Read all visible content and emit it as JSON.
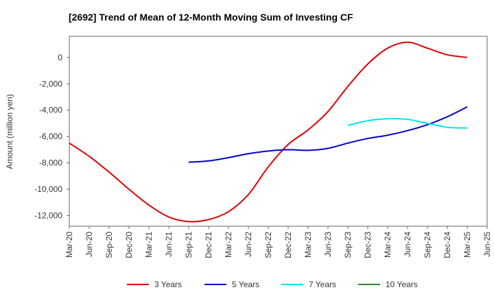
{
  "chart_data": {
    "type": "line",
    "title": "[2692]  Trend of Mean of 12-Month Moving Sum of Investing CF",
    "xlabel": "",
    "ylabel": "Amount (million yen)",
    "ylim": [
      -12800,
      1600
    ],
    "y_ticks": [
      0,
      -2000,
      -4000,
      -6000,
      -8000,
      -10000,
      -12000
    ],
    "y_tick_labels": [
      "0",
      "-2,000",
      "-4,000",
      "-6,000",
      "-8,000",
      "-10,000",
      "-12,000"
    ],
    "x_tick_labels": [
      "Mar-20",
      "Jun-20",
      "Sep-20",
      "Dec-20",
      "Mar-21",
      "Jun-21",
      "Sep-21",
      "Dec-21",
      "Mar-22",
      "Jun-22",
      "Sep-22",
      "Dec-22",
      "Mar-23",
      "Jun-23",
      "Sep-23",
      "Dec-23",
      "Mar-24",
      "Jun-24",
      "Sep-24",
      "Dec-24",
      "Mar-25",
      "Jun-25"
    ],
    "grid": true,
    "legend_position": "bottom",
    "series": [
      {
        "name": "3 Years",
        "color": "#e00000",
        "points": [
          [
            "Mar-20",
            -6500
          ],
          [
            "Jun-20",
            -7500
          ],
          [
            "Sep-20",
            -8700
          ],
          [
            "Dec-20",
            -10000
          ],
          [
            "Mar-21",
            -11200
          ],
          [
            "Jun-21",
            -12100
          ],
          [
            "Sep-21",
            -12450
          ],
          [
            "Dec-21",
            -12300
          ],
          [
            "Mar-22",
            -11700
          ],
          [
            "Jun-22",
            -10400
          ],
          [
            "Sep-22",
            -8300
          ],
          [
            "Dec-22",
            -6600
          ],
          [
            "Mar-23",
            -5500
          ],
          [
            "Jun-23",
            -4100
          ],
          [
            "Sep-23",
            -2200
          ],
          [
            "Dec-23",
            -500
          ],
          [
            "Mar-24",
            700
          ],
          [
            "Jun-24",
            1150
          ],
          [
            "Sep-24",
            700
          ],
          [
            "Dec-24",
            200
          ],
          [
            "Mar-25",
            0
          ]
        ]
      },
      {
        "name": "5 Years",
        "color": "#0000cc",
        "points": [
          [
            "Sep-21",
            -7950
          ],
          [
            "Dec-21",
            -7850
          ],
          [
            "Mar-22",
            -7600
          ],
          [
            "Jun-22",
            -7300
          ],
          [
            "Sep-22",
            -7100
          ],
          [
            "Dec-22",
            -7000
          ],
          [
            "Mar-23",
            -7050
          ],
          [
            "Jun-23",
            -6900
          ],
          [
            "Sep-23",
            -6500
          ],
          [
            "Dec-23",
            -6150
          ],
          [
            "Mar-24",
            -5900
          ],
          [
            "Jun-24",
            -5550
          ],
          [
            "Sep-24",
            -5100
          ],
          [
            "Dec-24",
            -4500
          ],
          [
            "Mar-25",
            -3750
          ]
        ]
      },
      {
        "name": "7 Years",
        "color": "#00e5ee",
        "points": [
          [
            "Sep-23",
            -5150
          ],
          [
            "Dec-23",
            -4800
          ],
          [
            "Mar-24",
            -4650
          ],
          [
            "Jun-24",
            -4700
          ],
          [
            "Sep-24",
            -5000
          ],
          [
            "Dec-24",
            -5300
          ],
          [
            "Mar-25",
            -5350
          ]
        ]
      },
      {
        "name": "10 Years",
        "color": "#228b22",
        "points": []
      }
    ]
  }
}
